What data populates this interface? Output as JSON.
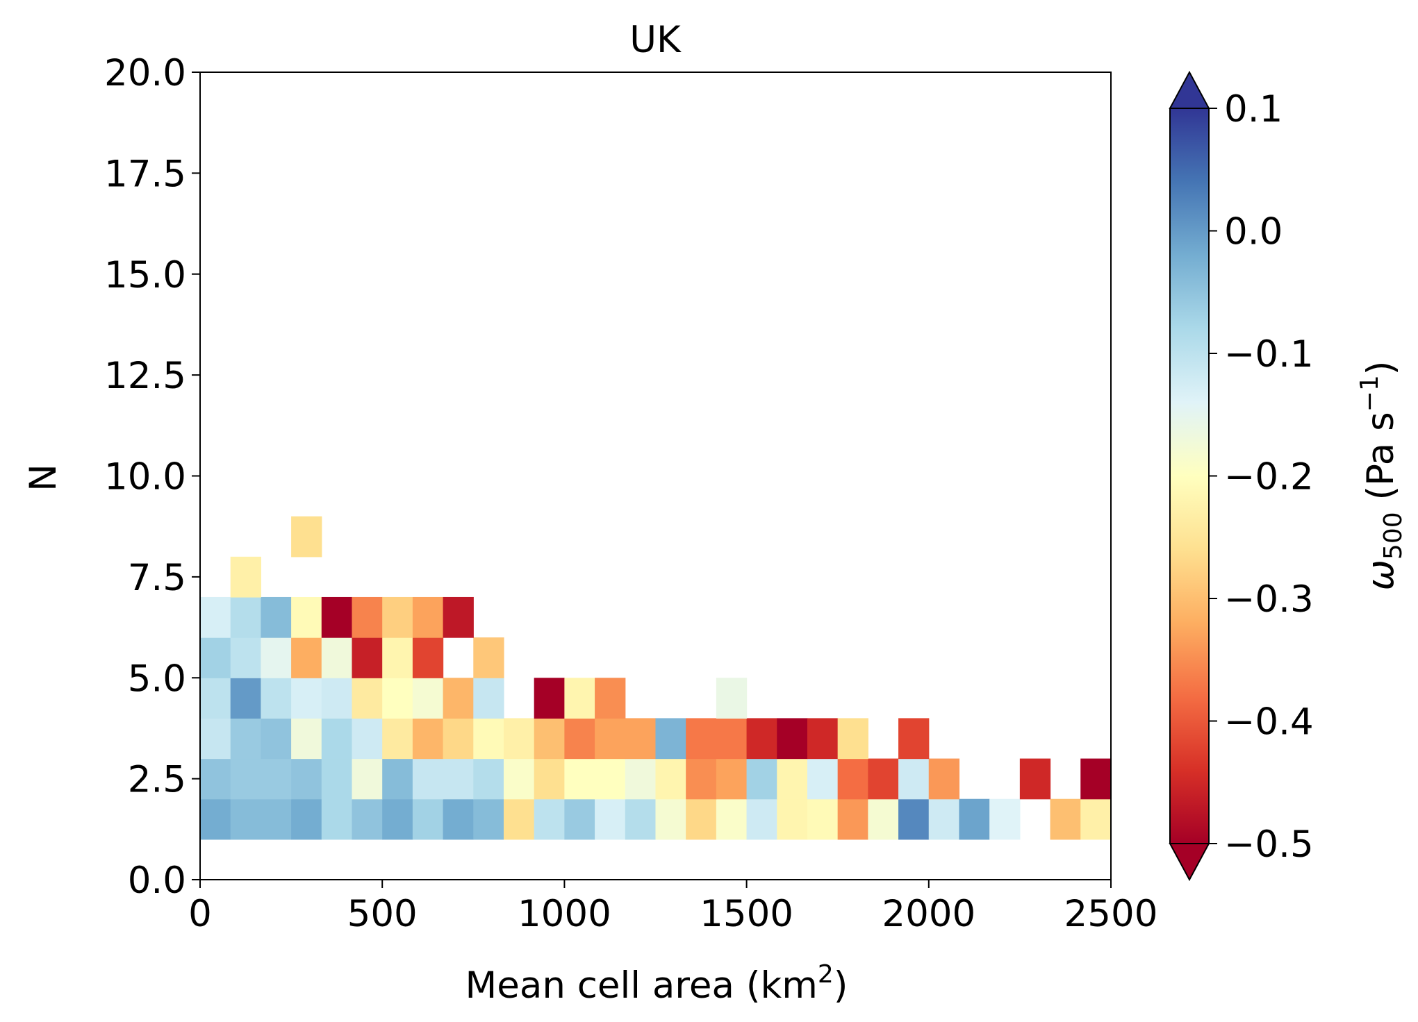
{
  "chart_data": {
    "type": "heatmap",
    "title": "UK",
    "xlabel": "Mean cell area (km",
    "xlabel_superscript": "2",
    "xlabel_suffix": ")",
    "ylabel": "N",
    "xlim": [
      0,
      2500
    ],
    "ylim": [
      0,
      20
    ],
    "xticks": [
      "0",
      "500",
      "1000",
      "1500",
      "2000",
      "2500"
    ],
    "yticks": [
      "0.0",
      "2.5",
      "5.0",
      "7.5",
      "10.0",
      "12.5",
      "15.0",
      "17.5",
      "20.0"
    ],
    "x_bin_width": 83.33,
    "y_bin_height": 1,
    "grid": false,
    "colormap": "RdYlBu",
    "colorbar": {
      "label_main": "ω",
      "label_sub": "500",
      "label_unit": " (Pa s",
      "label_unit_sup": "−1",
      "label_close": ")",
      "range": [
        -0.5,
        0.1
      ],
      "ticks": [
        "0.1",
        "0.0",
        "−0.1",
        "−0.2",
        "−0.3",
        "−0.4",
        "−0.5"
      ],
      "extend": "both",
      "under_color": "#a50026",
      "over_color": "#313695"
    },
    "cells": [
      {
        "row": 1,
        "values": [
          -0.02,
          -0.04,
          -0.04,
          -0.02,
          -0.08,
          -0.05,
          -0.02,
          -0.07,
          -0.02,
          -0.04,
          -0.26,
          -0.1,
          -0.06,
          -0.13,
          -0.09,
          -0.18,
          -0.27,
          -0.19,
          -0.12,
          -0.22,
          -0.21,
          -0.34,
          -0.18,
          0.02,
          -0.12,
          -0.01,
          -0.14,
          null,
          -0.3,
          -0.23
        ]
      },
      {
        "row": 2,
        "values": [
          -0.05,
          -0.06,
          -0.06,
          -0.05,
          -0.08,
          -0.17,
          -0.04,
          -0.11,
          -0.11,
          -0.09,
          -0.19,
          -0.26,
          -0.2,
          -0.2,
          -0.17,
          -0.22,
          -0.35,
          -0.33,
          -0.07,
          -0.22,
          -0.13,
          -0.38,
          -0.42,
          -0.12,
          -0.34,
          null,
          null,
          -0.45,
          null,
          -0.5
        ]
      },
      {
        "row": 3,
        "values": [
          -0.11,
          -0.06,
          -0.05,
          -0.17,
          -0.08,
          -0.12,
          -0.24,
          -0.31,
          -0.27,
          -0.21,
          -0.23,
          -0.3,
          -0.36,
          -0.33,
          -0.33,
          -0.03,
          -0.37,
          -0.37,
          -0.45,
          -0.5,
          -0.45,
          -0.26,
          null,
          -0.42
        ]
      },
      {
        "row": 4,
        "values": [
          -0.1,
          0.0,
          -0.1,
          -0.13,
          -0.12,
          -0.24,
          -0.2,
          -0.18,
          -0.31,
          -0.11,
          null,
          -0.5,
          -0.22,
          -0.35,
          null,
          null,
          null,
          -0.16
        ]
      },
      {
        "row": 5,
        "values": [
          -0.07,
          -0.1,
          -0.15,
          -0.32,
          -0.17,
          -0.46,
          -0.22,
          -0.42,
          null,
          -0.29
        ]
      },
      {
        "row": 6,
        "values": [
          -0.13,
          -0.09,
          -0.04,
          -0.21,
          -0.5,
          -0.36,
          -0.28,
          -0.33,
          -0.47
        ]
      },
      {
        "row": 7,
        "values": [
          null,
          -0.23
        ]
      },
      {
        "row": 8,
        "values": [
          null,
          null,
          null,
          -0.26
        ]
      }
    ]
  }
}
